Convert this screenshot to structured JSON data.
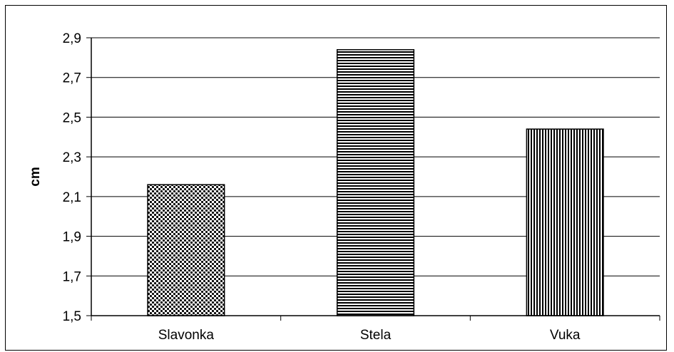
{
  "chart_data": {
    "type": "bar",
    "title": "",
    "xlabel": "",
    "ylabel": "cm",
    "categories": [
      "Slavonka",
      "Stela",
      "Vuka"
    ],
    "values": [
      2.16,
      2.84,
      2.44
    ],
    "ylim": [
      1.5,
      2.9
    ],
    "yticks": [
      1.5,
      1.7,
      1.9,
      2.1,
      2.3,
      2.5,
      2.7,
      2.9
    ],
    "ytick_labels": [
      "1,5",
      "1,7",
      "1,9",
      "2,1",
      "2,3",
      "2,5",
      "2,7",
      "2,9"
    ],
    "grid": true,
    "legend": "none",
    "bar_patterns": [
      "dotted",
      "horizontal-lines",
      "vertical-lines"
    ]
  }
}
